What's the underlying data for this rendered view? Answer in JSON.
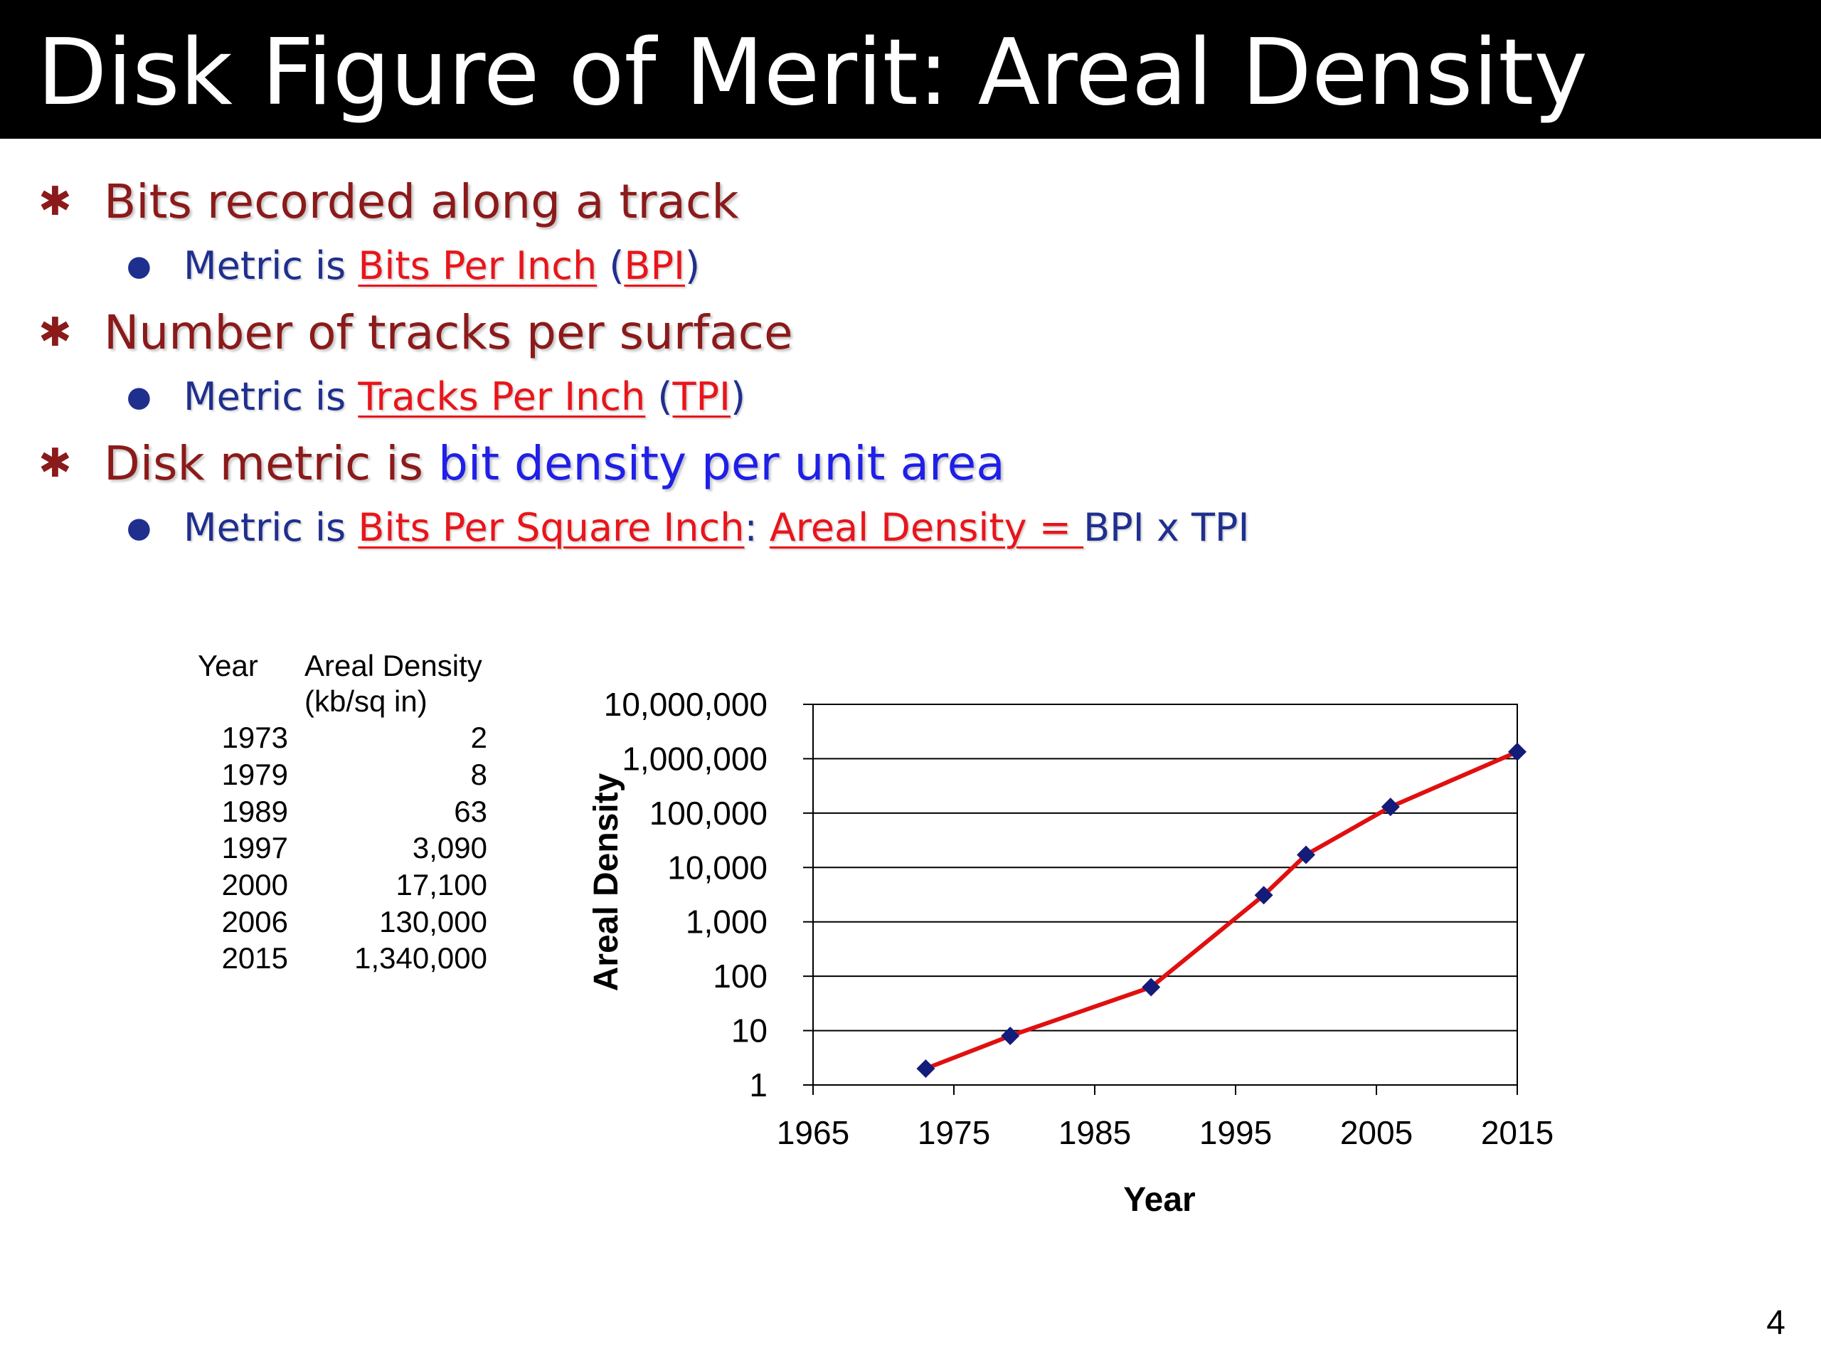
{
  "title": "Disk Figure of Merit:  Areal Density",
  "bullets": [
    {
      "text": "Bits recorded along a track",
      "sub": {
        "prefix": "Metric is ",
        "term": "Bits Per Inch",
        "open": " (",
        "abbr": "BPI",
        "close": ")"
      }
    },
    {
      "text": "Number of tracks per surface",
      "sub": {
        "prefix": "Metric is ",
        "term": "Tracks Per Inch",
        "open": " (",
        "abbr": "TPI",
        "close": ")"
      }
    },
    {
      "text_a": "Disk metric is ",
      "text_b": "bit density per unit area",
      "sub": {
        "prefix": "Metric is  ",
        "term": "Bits Per Square Inch",
        "colon": ": ",
        "term2": "Areal Density",
        "eq": " = ",
        "rest": "BPI x TPI"
      }
    }
  ],
  "table": {
    "headers": [
      "Year",
      "Areal Density",
      "(kb/sq in)"
    ],
    "rows": [
      {
        "year": "1973",
        "value": "2"
      },
      {
        "year": "1979",
        "value": "8"
      },
      {
        "year": "1989",
        "value": "63"
      },
      {
        "year": "1997",
        "value": "3,090"
      },
      {
        "year": "2000",
        "value": "17,100"
      },
      {
        "year": "2006",
        "value": "130,000"
      },
      {
        "year": "2015",
        "value": "1,340,000"
      }
    ]
  },
  "chart_data": {
    "type": "line",
    "x": [
      1973,
      1979,
      1989,
      1997,
      2000,
      2006,
      2015
    ],
    "series": [
      {
        "values": [
          2,
          8,
          63,
          3090,
          17100,
          130000,
          1340000
        ]
      }
    ],
    "xlabel": "Year",
    "ylabel": "Areal Density",
    "xlim": [
      1965,
      2015
    ],
    "ylim": [
      1,
      10000000
    ],
    "yscale": "log",
    "xticks": [
      "1965",
      "1975",
      "1985",
      "1995",
      "2005",
      "2015"
    ],
    "yticks": [
      "1",
      "10",
      "100",
      "1,000",
      "10,000",
      "100,000",
      "1,000,000",
      "10,000,000"
    ],
    "grid": "horizontal",
    "line_color": "#e01010",
    "marker_color": "#141c7a"
  },
  "page_number": "4"
}
